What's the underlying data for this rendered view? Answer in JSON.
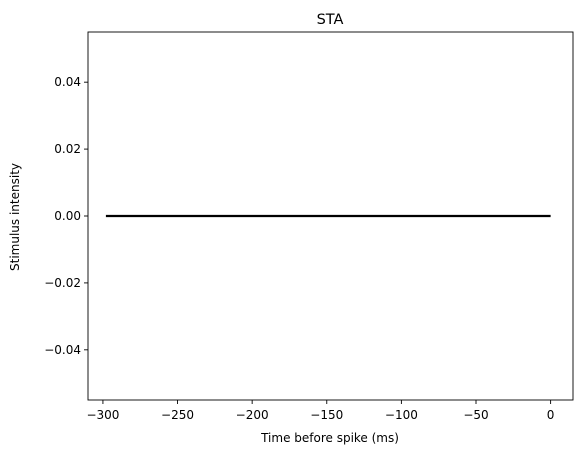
{
  "chart_data": {
    "type": "line",
    "title": "STA",
    "xlabel": "Time before spike (ms)",
    "ylabel": "Stimulus intensity",
    "xlim": [
      -310,
      15
    ],
    "ylim": [
      -0.055,
      0.055
    ],
    "xticks": [
      -300,
      -250,
      -200,
      -150,
      -100,
      -50,
      0
    ],
    "xtick_labels": [
      "−300",
      "−250",
      "−200",
      "−150",
      "−100",
      "−50",
      "0"
    ],
    "yticks": [
      0.04,
      0.02,
      0.0,
      -0.02,
      -0.04
    ],
    "ytick_labels": [
      "0.04",
      "0.02",
      "0.00",
      "−0.02",
      "−0.04"
    ],
    "grid": false,
    "series": [
      {
        "color": "#000000",
        "x": [
          -298,
          0
        ],
        "y": [
          0.0,
          0.0
        ]
      }
    ]
  }
}
